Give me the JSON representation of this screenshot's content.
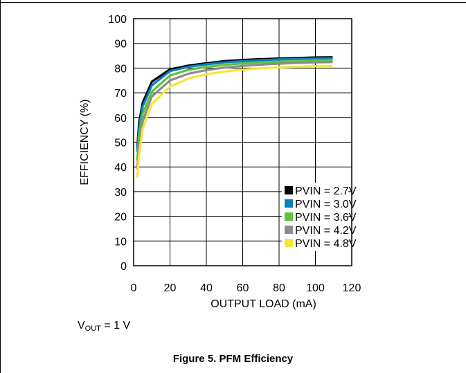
{
  "chart_data": {
    "type": "line",
    "title": "",
    "xlabel": "OUTPUT LOAD (mA)",
    "ylabel": "EFFICIENCY (%)",
    "xlim": [
      0,
      120
    ],
    "ylim": [
      0,
      100
    ],
    "x_ticks": [
      0,
      20,
      40,
      60,
      80,
      100,
      120
    ],
    "y_ticks": [
      0,
      10,
      20,
      30,
      40,
      50,
      60,
      70,
      80,
      90,
      100
    ],
    "grid": true,
    "legend_position": "bottom-right",
    "series": [
      {
        "name": "PVIN = 2.7V",
        "color": "#000000",
        "x": [
          2,
          3,
          5,
          10,
          20,
          30,
          40,
          50,
          60,
          70,
          80,
          90,
          100,
          109
        ],
        "y": [
          48,
          58,
          66,
          74.5,
          79.5,
          81,
          82,
          82.8,
          83.3,
          83.6,
          83.9,
          84.1,
          84.3,
          84.4
        ]
      },
      {
        "name": "PVIN = 3.0V",
        "color": "#0a7ebf",
        "x": [
          2,
          3,
          5,
          10,
          20,
          30,
          40,
          50,
          60,
          70,
          80,
          90,
          100,
          109
        ],
        "y": [
          46.5,
          56,
          64.5,
          73,
          78.8,
          80.5,
          81.5,
          82.3,
          82.8,
          83.2,
          83.5,
          83.7,
          83.9,
          84
        ]
      },
      {
        "name": "PVIN = 3.6V",
        "color": "#5cc33b",
        "x": [
          2,
          3,
          5,
          10,
          20,
          30,
          40,
          50,
          60,
          70,
          80,
          90,
          100,
          109
        ],
        "y": [
          43,
          52.5,
          61.5,
          70.5,
          77,
          79.3,
          80.5,
          81.3,
          81.9,
          82.3,
          82.6,
          82.9,
          83.1,
          83.2
        ]
      },
      {
        "name": "PVIN = 4.2V",
        "color": "#8c8c8c",
        "x": [
          2,
          3,
          5,
          10,
          20,
          30,
          40,
          50,
          60,
          70,
          80,
          90,
          100,
          109
        ],
        "y": [
          39.5,
          49,
          58.5,
          68.5,
          75,
          77.7,
          79.2,
          80.2,
          80.9,
          81.4,
          81.8,
          82.1,
          82.3,
          82.4
        ]
      },
      {
        "name": "PVIN = 4.8V",
        "color": "#f5e63a",
        "x": [
          2,
          3,
          5,
          10,
          20,
          30,
          40,
          50,
          60,
          70,
          80,
          90,
          100,
          109
        ],
        "y": [
          36,
          45,
          55.5,
          65.5,
          72.5,
          75.8,
          77.5,
          78.6,
          79.4,
          79.9,
          80.3,
          80.6,
          80.8,
          80.9
        ]
      }
    ]
  },
  "note": {
    "prefix": "V",
    "subscript": "OUT",
    "suffix": " = 1 V"
  },
  "caption": "Figure 5. PFM Efficiency"
}
